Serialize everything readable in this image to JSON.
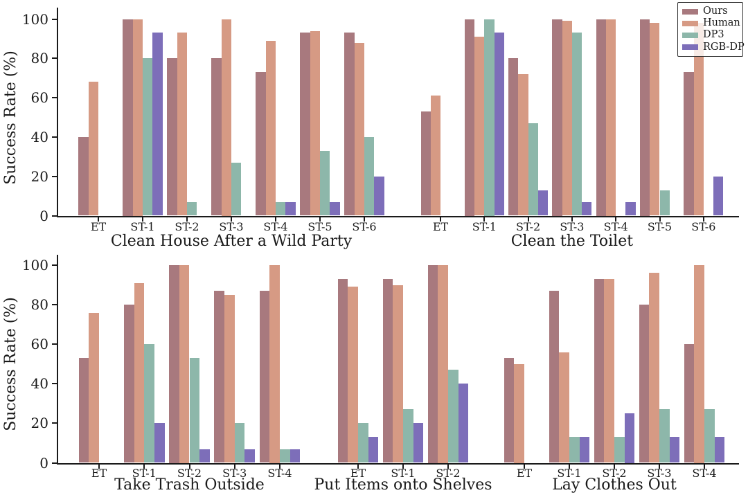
{
  "figure": {
    "ylabel": "Success Rate (%)",
    "y_ticks": [
      0,
      20,
      40,
      60,
      80,
      100
    ],
    "axis_color": "#1a1a1a",
    "background": "#ffffff",
    "legend": {
      "position": "top-right",
      "entries": [
        {
          "label": "Ours",
          "color": "#a8797e"
        },
        {
          "label": "Human",
          "color": "#d69a84"
        },
        {
          "label": "DP3",
          "color": "#8db7aa"
        },
        {
          "label": "RGB-DP",
          "color": "#7d6eb9"
        }
      ]
    }
  },
  "chart_data": [
    {
      "type": "bar",
      "row": 0,
      "title": "Clean House After a Wild Party",
      "categories": [
        "ET",
        "ST-1",
        "ST-2",
        "ST-3",
        "ST-4",
        "ST-5",
        "ST-6"
      ],
      "series": [
        {
          "name": "Ours",
          "values": [
            40,
            100,
            80,
            80,
            73,
            93,
            93
          ]
        },
        {
          "name": "Human",
          "values": [
            68,
            100,
            93,
            100,
            89,
            94,
            88
          ]
        },
        {
          "name": "DP3",
          "values": [
            0,
            80,
            7,
            27,
            7,
            33,
            40
          ]
        },
        {
          "name": "RGB-DP",
          "values": [
            0,
            93,
            0,
            0,
            7,
            7,
            20
          ]
        }
      ],
      "xlabel": "Clean House After a Wild Party",
      "ylabel": "Success Rate (%)",
      "ylim": [
        0,
        100
      ],
      "grid": false
    },
    {
      "type": "bar",
      "row": 0,
      "title": "Clean the Toilet",
      "categories": [
        "ET",
        "ST-1",
        "ST-2",
        "ST-3",
        "ST-4",
        "ST-5",
        "ST-6"
      ],
      "series": [
        {
          "name": "Ours",
          "values": [
            53,
            100,
            80,
            100,
            100,
            100,
            73
          ]
        },
        {
          "name": "Human",
          "values": [
            61,
            91,
            72,
            99,
            100,
            98,
            98
          ]
        },
        {
          "name": "DP3",
          "values": [
            0,
            100,
            47,
            93,
            0,
            13,
            0
          ]
        },
        {
          "name": "RGB-DP",
          "values": [
            0,
            93,
            13,
            7,
            7,
            0,
            20
          ]
        }
      ],
      "xlabel": "Clean the Toilet",
      "ylabel": "Success Rate (%)",
      "ylim": [
        0,
        100
      ],
      "grid": false
    },
    {
      "type": "bar",
      "row": 1,
      "title": "Take Trash Outside",
      "categories": [
        "ET",
        "ST-1",
        "ST-2",
        "ST-3",
        "ST-4"
      ],
      "series": [
        {
          "name": "Ours",
          "values": [
            53,
            80,
            100,
            87,
            87
          ]
        },
        {
          "name": "Human",
          "values": [
            76,
            91,
            100,
            85,
            100
          ]
        },
        {
          "name": "DP3",
          "values": [
            0,
            60,
            53,
            20,
            7
          ]
        },
        {
          "name": "RGB-DP",
          "values": [
            0,
            20,
            7,
            7,
            7
          ]
        }
      ],
      "xlabel": "Take Trash Outside",
      "ylabel": "Success Rate (%)",
      "ylim": [
        0,
        100
      ],
      "grid": false
    },
    {
      "type": "bar",
      "row": 1,
      "title": "Put Items onto Shelves",
      "categories": [
        "ET",
        "ST-1",
        "ST-2"
      ],
      "series": [
        {
          "name": "Ours",
          "values": [
            93,
            93,
            100
          ]
        },
        {
          "name": "Human",
          "values": [
            89,
            90,
            100
          ]
        },
        {
          "name": "DP3",
          "values": [
            20,
            27,
            47
          ]
        },
        {
          "name": "RGB-DP",
          "values": [
            13,
            20,
            40
          ]
        }
      ],
      "xlabel": "Put Items onto Shelves",
      "ylabel": "Success Rate (%)",
      "ylim": [
        0,
        100
      ],
      "grid": false
    },
    {
      "type": "bar",
      "row": 1,
      "title": "Lay Clothes Out",
      "categories": [
        "ET",
        "ST-1",
        "ST-2",
        "ST-3",
        "ST-4"
      ],
      "series": [
        {
          "name": "Ours",
          "values": [
            53,
            87,
            93,
            80,
            60
          ]
        },
        {
          "name": "Human",
          "values": [
            50,
            56,
            93,
            96,
            100
          ]
        },
        {
          "name": "DP3",
          "values": [
            0,
            13,
            13,
            27,
            27
          ]
        },
        {
          "name": "RGB-DP",
          "values": [
            0,
            13,
            25,
            13,
            13
          ]
        }
      ],
      "xlabel": "Lay Clothes Out",
      "ylabel": "Success Rate (%)",
      "ylim": [
        0,
        100
      ],
      "grid": false
    }
  ]
}
